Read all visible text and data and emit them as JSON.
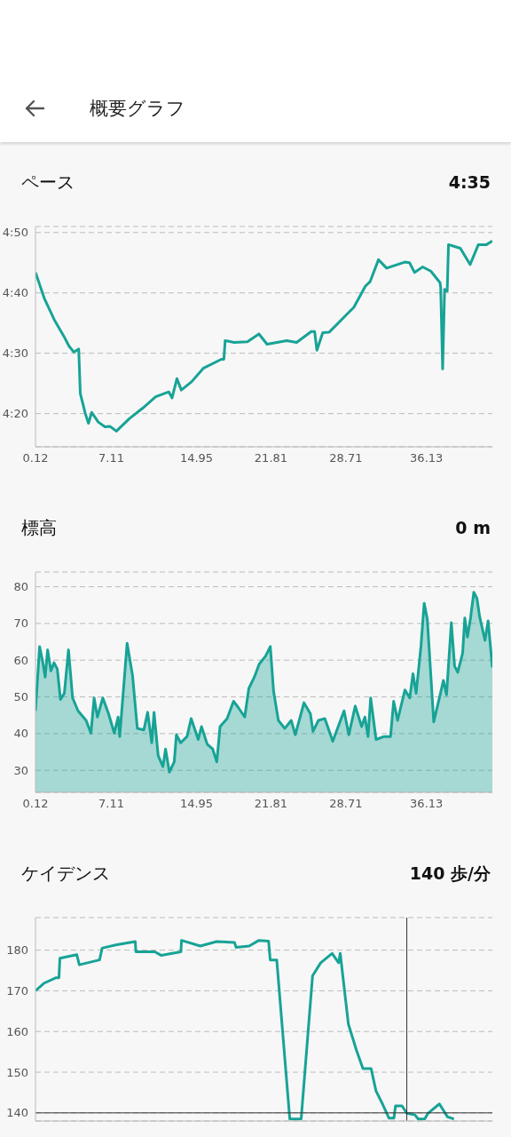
{
  "chart_data": [
    {
      "type": "line",
      "title": "ペース",
      "subtitle": "4:35",
      "annotations": [
        "概要グラフ"
      ],
      "color": "#17a396",
      "grid": "y",
      "xlim": [
        0.12,
        42.2
      ],
      "xticks": [
        0.12,
        7.11,
        14.95,
        21.81,
        28.71,
        36.13
      ],
      "ylim": [
        254.5,
        291
      ],
      "yticks": [
        {
          "value": 260,
          "label": "4:20"
        },
        {
          "value": 270,
          "label": "4:30"
        },
        {
          "value": 280,
          "label": "4:40"
        },
        {
          "value": 290,
          "label": "4:50"
        }
      ],
      "x": [
        0.12,
        0.93,
        1.84,
        2.74,
        3.2,
        3.65,
        4.1,
        4.25,
        4.71,
        5.0,
        5.3,
        5.9,
        6.52,
        6.97,
        7.57,
        8.78,
        9.99,
        11.19,
        12.4,
        12.7,
        13.15,
        13.55,
        14.51,
        15.57,
        17.23,
        17.47,
        17.59,
        18.43,
        19.64,
        20.7,
        21.45,
        23.26,
        24.17,
        25.52,
        25.83,
        26.04,
        26.58,
        27.18,
        28.99,
        29.44,
        30.5,
        30.95,
        31.71,
        32.46,
        34.12,
        34.57,
        35.03,
        35.78,
        36.53,
        37.38,
        37.44,
        37.62,
        37.8,
        38.04,
        38.16,
        39.25,
        40.15,
        40.91,
        41.66,
        42.2
      ],
      "values": [
        283.4,
        279.1,
        275.6,
        272.8,
        271.2,
        270.2,
        270.7,
        263.3,
        260.0,
        258.4,
        260.2,
        258.6,
        257.8,
        257.9,
        257.1,
        259.2,
        260.9,
        262.8,
        263.6,
        262.6,
        265.8,
        263.9,
        265.3,
        267.5,
        269.0,
        269.0,
        272.1,
        271.8,
        271.9,
        273.2,
        271.5,
        272.1,
        271.8,
        273.6,
        273.6,
        270.5,
        273.4,
        273.5,
        276.8,
        277.6,
        281.1,
        281.9,
        285.5,
        284.1,
        285.1,
        285.0,
        283.4,
        284.3,
        283.6,
        281.7,
        280.9,
        267.4,
        280.6,
        280.3,
        288.0,
        287.4,
        284.7,
        288.0,
        288.0,
        288.6
      ]
    },
    {
      "type": "area",
      "title": "標高",
      "subtitle": "0 m",
      "color": "#17a396",
      "grid": "y",
      "xlim": [
        0.12,
        42.2
      ],
      "xticks": [
        0.12,
        7.11,
        14.95,
        21.81,
        28.71,
        36.13
      ],
      "ylim": [
        24,
        84
      ],
      "yticks": [
        30,
        40,
        50,
        60,
        70,
        80
      ],
      "x": [
        0.12,
        0.5,
        0.8,
        1.01,
        1.24,
        1.54,
        1.83,
        2.13,
        2.42,
        2.78,
        3.16,
        3.54,
        4.04,
        4.78,
        5.23,
        5.52,
        5.82,
        6.32,
        6.85,
        7.38,
        7.73,
        7.88,
        8.56,
        9.06,
        9.5,
        10.1,
        10.45,
        10.83,
        11.04,
        11.42,
        11.86,
        12.1,
        12.45,
        12.9,
        13.1,
        13.49,
        14.08,
        14.46,
        15.11,
        15.41,
        15.94,
        16.44,
        16.82,
        17.12,
        17.77,
        18.36,
        18.8,
        19.39,
        19.77,
        20.28,
        20.72,
        21.31,
        21.75,
        22.05,
        22.49,
        23.08,
        23.67,
        24.05,
        24.85,
        25.44,
        25.68,
        26.18,
        26.77,
        27.5,
        28.1,
        28.54,
        28.98,
        29.57,
        30.16,
        30.46,
        30.75,
        30.99,
        31.49,
        32.23,
        32.82,
        33.11,
        33.47,
        34.15,
        34.59,
        34.89,
        35.18,
        35.62,
        35.92,
        36.21,
        36.8,
        37.39,
        37.69,
        37.98,
        38.42,
        38.72,
        39.01,
        39.46,
        39.66,
        39.9,
        40.19,
        40.49,
        40.78,
        41.02,
        41.52,
        41.81,
        42.2
      ],
      "values": [
        46.2,
        63.7,
        59.3,
        55.4,
        62.8,
        57.1,
        59.3,
        57.6,
        49.3,
        51.0,
        62.8,
        49.7,
        46.2,
        43.6,
        40.1,
        49.7,
        44.5,
        49.7,
        45.4,
        40.1,
        44.5,
        39.2,
        64.6,
        55.8,
        41.4,
        41.0,
        45.8,
        37.5,
        45.8,
        34.0,
        31.0,
        35.8,
        29.5,
        32.3,
        39.7,
        37.5,
        39.2,
        44.1,
        38.4,
        41.9,
        37.1,
        35.8,
        32.3,
        41.9,
        44.1,
        48.8,
        47.1,
        44.5,
        52.3,
        55.4,
        58.9,
        61.1,
        63.7,
        51.5,
        43.6,
        41.4,
        43.6,
        39.7,
        48.4,
        45.4,
        40.6,
        43.6,
        44.1,
        37.9,
        42.7,
        46.2,
        39.7,
        47.5,
        41.9,
        44.5,
        39.2,
        49.7,
        38.4,
        39.2,
        39.2,
        48.8,
        43.6,
        51.9,
        49.7,
        56.3,
        51.0,
        63.7,
        75.5,
        71.1,
        43.2,
        50.6,
        54.5,
        50.6,
        70.2,
        58.4,
        56.7,
        61.9,
        71.5,
        66.3,
        71.5,
        78.5,
        76.8,
        72.0,
        65.4,
        70.7,
        58.0
      ]
    },
    {
      "type": "line",
      "title": "ケイデンス",
      "subtitle": "140 歩/分",
      "color": "#17a396",
      "grid": "y",
      "tick_labels": "y",
      "xlim": [
        0.12,
        42.2
      ],
      "ylim": [
        138,
        188
      ],
      "yticks": [
        140,
        150,
        160,
        170,
        180
      ],
      "ref_lines": [
        {
          "axis": "x",
          "value": 34.32,
          "color": "#333333"
        },
        {
          "axis": "y",
          "value": 140,
          "color": "#333333"
        }
      ],
      "x": [
        0.12,
        0.93,
        1.98,
        2.28,
        2.37,
        3.92,
        4.16,
        6.02,
        6.26,
        7.52,
        9.31,
        9.37,
        11.11,
        11.71,
        13.51,
        13.57,
        15.3,
        16.8,
        18.45,
        18.6,
        19.8,
        20.7,
        21.59,
        21.74,
        22.34,
        23.54,
        23.99,
        24.59,
        25.64,
        26.39,
        27.44,
        28.04,
        28.19,
        28.94,
        29.68,
        30.28,
        31.03,
        31.48,
        32.08,
        32.68,
        33.13,
        33.28,
        33.88,
        34.32,
        35.07,
        35.37,
        35.97,
        36.27,
        37.32,
        38.07,
        38.66
      ],
      "values": [
        170.0,
        171.9,
        173.2,
        173.2,
        178.0,
        178.9,
        176.4,
        177.6,
        180.5,
        181.3,
        182.1,
        179.6,
        179.6,
        178.7,
        179.6,
        182.4,
        181.0,
        182.1,
        181.9,
        180.7,
        181.0,
        182.4,
        182.2,
        177.6,
        177.6,
        138.5,
        138.5,
        138.5,
        173.7,
        176.9,
        179.2,
        176.9,
        179.2,
        161.8,
        155.4,
        150.9,
        150.9,
        145.4,
        142.2,
        138.7,
        138.7,
        141.7,
        141.7,
        139.9,
        139.5,
        138.5,
        138.5,
        139.9,
        142.2,
        139.0,
        138.5
      ]
    }
  ]
}
